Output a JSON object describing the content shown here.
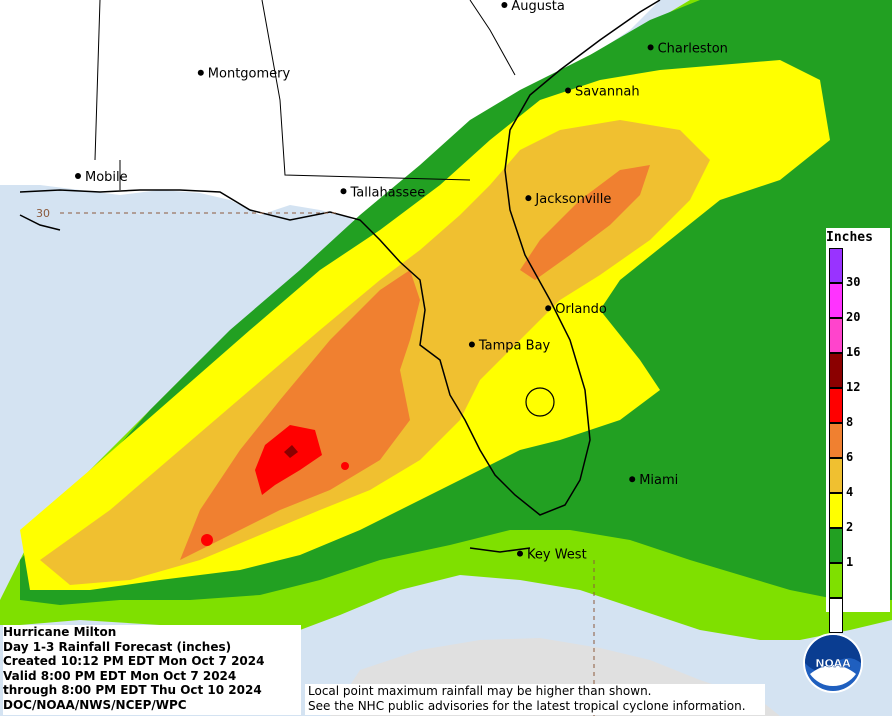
{
  "map": {
    "cities": [
      {
        "name": "Augusta",
        "lon": -82.0,
        "lat": 33.47
      },
      {
        "name": "Charleston",
        "lon": -79.93,
        "lat": 32.78
      },
      {
        "name": "Montgomery",
        "lon": -86.3,
        "lat": 32.37
      },
      {
        "name": "Savannah",
        "lon": -81.1,
        "lat": 32.08
      },
      {
        "name": "Mobile",
        "lon": -88.04,
        "lat": 30.69
      },
      {
        "name": "Tallahassee",
        "lon": -84.28,
        "lat": 30.44
      },
      {
        "name": "Jacksonville",
        "lon": -81.66,
        "lat": 30.33
      },
      {
        "name": "Orlando",
        "lon": -81.38,
        "lat": 28.54
      },
      {
        "name": "Tampa Bay",
        "lon": -82.46,
        "lat": 27.95
      },
      {
        "name": "Miami",
        "lon": -80.19,
        "lat": 25.76
      },
      {
        "name": "Key West",
        "lon": -81.78,
        "lat": 24.55
      }
    ],
    "latitude_label": "30"
  },
  "legend": {
    "title": "Inches",
    "bins": [
      {
        "value": "30",
        "color": "#9933ff"
      },
      {
        "value": "20",
        "color": "#ff33ff"
      },
      {
        "value": "16",
        "color": "#ff44cc"
      },
      {
        "value": "12",
        "color": "#8b0000"
      },
      {
        "value": "8",
        "color": "#ff0000"
      },
      {
        "value": "6",
        "color": "#f08030"
      },
      {
        "value": "4",
        "color": "#f0c030"
      },
      {
        "value": "2",
        "color": "#ffff00"
      },
      {
        "value": "1",
        "color": "#22a022"
      },
      {
        "value": "",
        "color": "#7fe000"
      },
      {
        "value": "",
        "color": "#ffffff"
      }
    ]
  },
  "info": {
    "line1": "Hurricane Milton",
    "line2": "Day 1-3 Rainfall Forecast (inches)",
    "line3": "Created 10:12 PM EDT Mon Oct 7 2024",
    "line4": "Valid 8:00 PM EDT Mon Oct 7 2024",
    "line5": "through 8:00 PM EDT Thu Oct 10 2024",
    "line6": "DOC/NOAA/NWS/NCEP/WPC"
  },
  "disclaimer": {
    "line1": "Local point maximum rainfall may be higher than shown.",
    "line2": "See the NHC public advisories for the latest tropical cyclone information."
  },
  "logo": {
    "text": "NOAA"
  },
  "colors": {
    "water": "#d4e3f2",
    "land": "#ffffff",
    "light_green": "#7fe000",
    "dark_green": "#22a022",
    "yellow": "#ffff00",
    "gold": "#f0c030",
    "orange": "#f08030",
    "red": "#ff0000",
    "dark_red": "#8b0000"
  }
}
